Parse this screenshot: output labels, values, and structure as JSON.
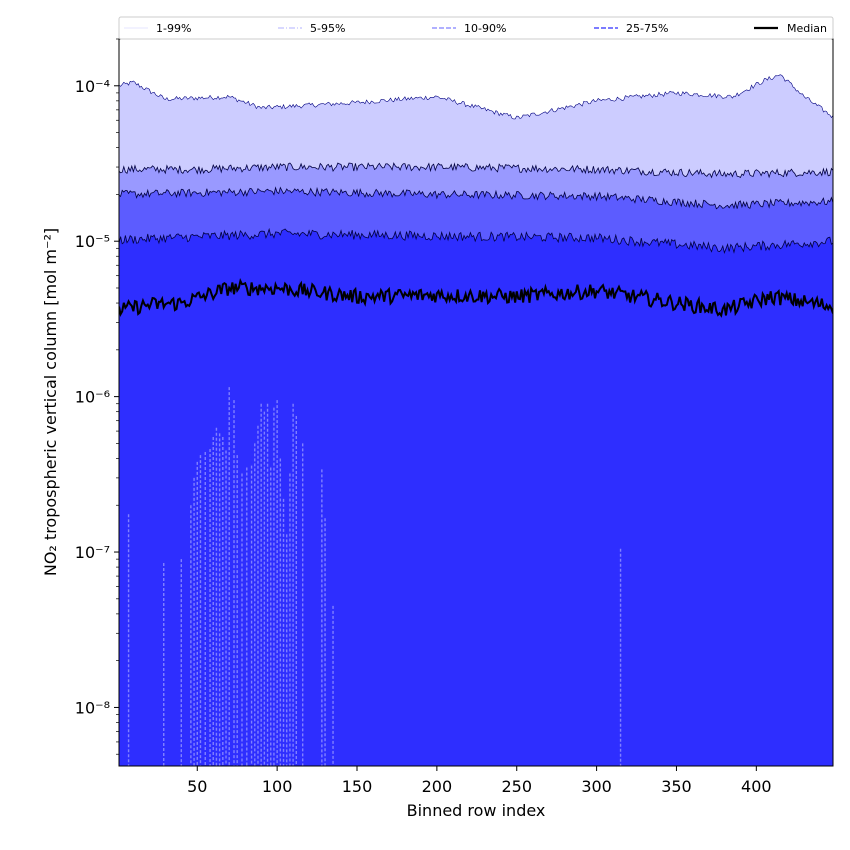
{
  "chart_data": {
    "type": "area",
    "title": "",
    "xlabel": "Binned row index",
    "ylabel": "NO₂ tropospheric vertical column [mol m⁻²]",
    "x_range": [
      1,
      448
    ],
    "xlim": [
      1,
      448
    ],
    "ylim": [
      4.2e-09,
      0.0002
    ],
    "yscale": "log",
    "x_ticks": [
      50,
      100,
      150,
      200,
      250,
      300,
      350,
      400
    ],
    "x_tick_labels": [
      "50",
      "100",
      "150",
      "200",
      "250",
      "300",
      "350",
      "400"
    ],
    "y_ticks": [
      1e-08,
      1e-07,
      1e-06,
      1e-05,
      0.0001
    ],
    "y_tick_labels": [
      "10⁻⁸",
      "10⁻⁷",
      "10⁻⁶",
      "10⁻⁵",
      "10⁻⁴"
    ],
    "legend_position": "top, outside, single row",
    "grid": false,
    "bands": [
      {
        "name": "1-99%",
        "color": "#ccccff",
        "upper_trend": [
          [
            1,
            0.0001
          ],
          [
            10,
            0.000105
          ],
          [
            30,
            8.2e-05
          ],
          [
            70,
            8.5e-05
          ],
          [
            90,
            7.2e-05
          ],
          [
            150,
            7.8e-05
          ],
          [
            200,
            8.5e-05
          ],
          [
            250,
            6.2e-05
          ],
          [
            300,
            8e-05
          ],
          [
            350,
            9e-05
          ],
          [
            385,
            8.5e-05
          ],
          [
            405,
            0.000108
          ],
          [
            415,
            0.000118
          ],
          [
            430,
            8.5e-05
          ],
          [
            448,
            6.3e-05
          ]
        ]
      },
      {
        "name": "5-95%",
        "color": "#9999ff",
        "upper_trend": [
          [
            1,
            2.9e-05
          ],
          [
            50,
            2.9e-05
          ],
          [
            100,
            3e-05
          ],
          [
            200,
            3e-05
          ],
          [
            300,
            2.9e-05
          ],
          [
            380,
            2.7e-05
          ],
          [
            448,
            2.8e-05
          ]
        ]
      },
      {
        "name": "10-90%",
        "color": "#5c5cff",
        "upper_trend": [
          [
            1,
            2e-05
          ],
          [
            100,
            2.1e-05
          ],
          [
            200,
            2e-05
          ],
          [
            300,
            1.95e-05
          ],
          [
            380,
            1.7e-05
          ],
          [
            448,
            1.8e-05
          ]
        ]
      },
      {
        "name": "25-75%",
        "color": "#2e2eff",
        "upper_trend": [
          [
            1,
            1.02e-05
          ],
          [
            100,
            1.12e-05
          ],
          [
            200,
            1.08e-05
          ],
          [
            300,
            1.05e-05
          ],
          [
            380,
            9e-06
          ],
          [
            448,
            1e-05
          ]
        ]
      }
    ],
    "series": [
      {
        "name": "Median",
        "color": "#000000",
        "trend": [
          [
            1,
            3.6e-06
          ],
          [
            20,
            3.9e-06
          ],
          [
            40,
            4e-06
          ],
          [
            70,
            5e-06
          ],
          [
            100,
            5e-06
          ],
          [
            150,
            4.4e-06
          ],
          [
            200,
            4.5e-06
          ],
          [
            250,
            4.4e-06
          ],
          [
            300,
            4.8e-06
          ],
          [
            350,
            4e-06
          ],
          [
            380,
            3.6e-06
          ],
          [
            410,
            4.4e-06
          ],
          [
            448,
            3.8e-06
          ]
        ]
      }
    ],
    "lower_1pct_spikes": [
      [
        7,
        1.75e-07
      ],
      [
        29,
        8.5e-08
      ],
      [
        40,
        9e-08
      ],
      [
        46,
        2e-07
      ],
      [
        48,
        3e-07
      ],
      [
        50,
        3.8e-07
      ],
      [
        52,
        4.2e-07
      ],
      [
        55,
        4.4e-07
      ],
      [
        58,
        4.6e-07
      ],
      [
        60,
        5.5e-07
      ],
      [
        62,
        6.3e-07
      ],
      [
        64,
        5.8e-07
      ],
      [
        66,
        5.5e-07
      ],
      [
        68,
        4.5e-07
      ],
      [
        70,
        1.15e-06
      ],
      [
        73,
        9.5e-07
      ],
      [
        75,
        4.2e-07
      ],
      [
        78,
        3.2e-07
      ],
      [
        81,
        3.5e-07
      ],
      [
        84,
        3.6e-07
      ],
      [
        86,
        5e-07
      ],
      [
        88,
        6.5e-07
      ],
      [
        90,
        9e-07
      ],
      [
        92,
        8e-07
      ],
      [
        94,
        9e-07
      ],
      [
        96,
        3.5e-07
      ],
      [
        98,
        8.5e-07
      ],
      [
        100,
        9.5e-07
      ],
      [
        102,
        4e-07
      ],
      [
        104,
        2.2e-07
      ],
      [
        106,
        1.3e-07
      ],
      [
        108,
        3.2e-07
      ],
      [
        110,
        9e-07
      ],
      [
        112,
        7.5e-07
      ],
      [
        116,
        5e-07
      ],
      [
        128,
        3.4e-07
      ],
      [
        130,
        1.65e-07
      ],
      [
        135,
        4.5e-08
      ],
      [
        315,
        1.05e-07
      ]
    ]
  },
  "legend": {
    "items": [
      {
        "label": "1-99%",
        "color": "#ccccff",
        "style": "solid",
        "width": 0.6
      },
      {
        "label": "5-95%",
        "color": "#9999ff",
        "style": "dashdot",
        "width": 0.7
      },
      {
        "label": "10-90%",
        "color": "#8080ff",
        "style": "dashed",
        "width": 1.2
      },
      {
        "label": "25-75%",
        "color": "#5050ff",
        "style": "dashed",
        "width": 1.5
      },
      {
        "label": "Median",
        "color": "#000000",
        "style": "solid",
        "width": 2.2
      }
    ]
  }
}
